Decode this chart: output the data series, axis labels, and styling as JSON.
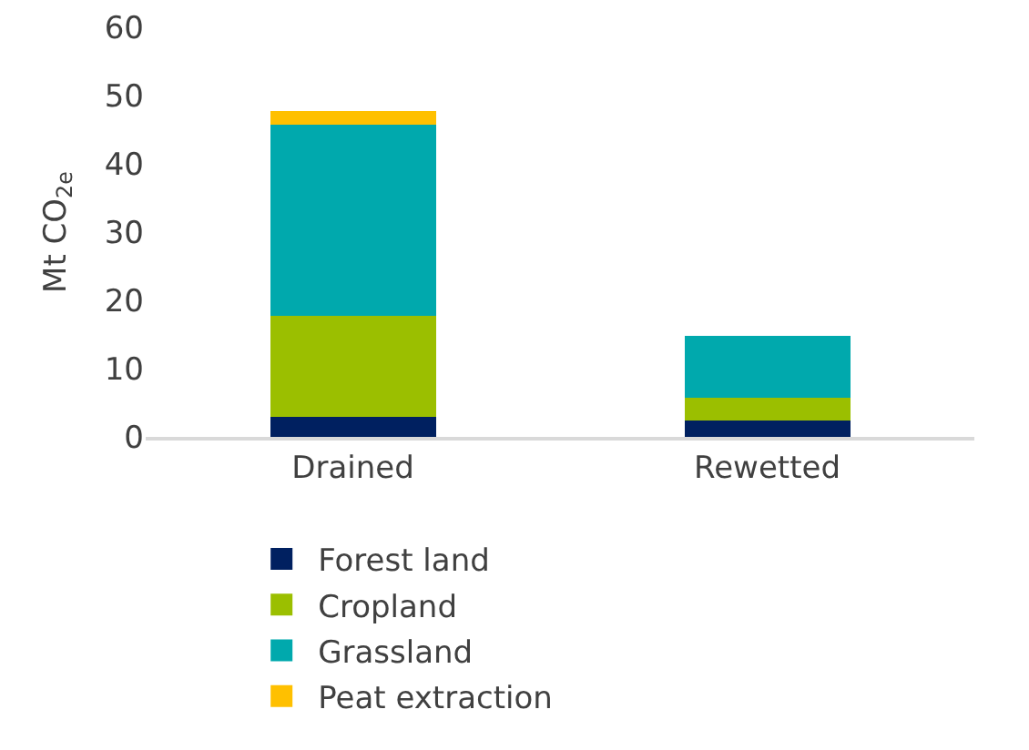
{
  "chart_data": {
    "type": "bar",
    "stacked": true,
    "ylabel": "Mt CO$_{2e}$",
    "categories": [
      "Drained",
      "Rewetted"
    ],
    "series": [
      {
        "name": "Forest land",
        "color": "#002060",
        "values": [
          2.9,
          2.4
        ]
      },
      {
        "name": "Cropland",
        "color": "#9bbf00",
        "values": [
          14.8,
          3.3
        ]
      },
      {
        "name": "Grassland",
        "color": "#00a9ad",
        "values": [
          28.0,
          9.1
        ]
      },
      {
        "name": "Peat extraction",
        "color": "#ffc000",
        "values": [
          2.1,
          0
        ]
      }
    ],
    "ylim": [
      0,
      60
    ],
    "yticks": [
      0,
      10,
      20,
      30,
      40,
      50,
      60
    ],
    "grid": false,
    "legend": "bottom"
  }
}
